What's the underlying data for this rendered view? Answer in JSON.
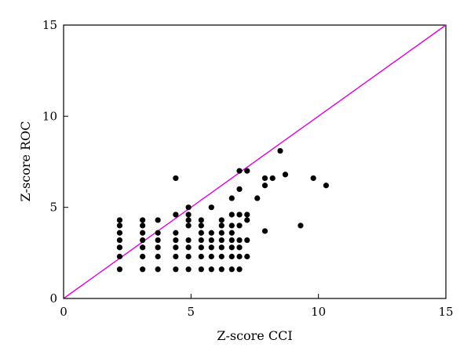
{
  "chart_data": {
    "type": "scatter",
    "xlabel": "Z-score CCI",
    "ylabel": "Z-score ROC",
    "xlim": [
      0,
      15
    ],
    "ylim": [
      0,
      15
    ],
    "xticks": [
      0,
      5,
      10,
      15
    ],
    "yticks": [
      0,
      5,
      10,
      15
    ],
    "grid": false,
    "legend": "none",
    "point_color": "#000000",
    "line_color": "#e000e0",
    "reference_line": {
      "type": "identity",
      "from": [
        0,
        0
      ],
      "to": [
        15,
        15
      ]
    },
    "series": [
      {
        "points": [
          [
            2.2,
            1.6
          ],
          [
            2.2,
            2.3
          ],
          [
            2.2,
            2.8
          ],
          [
            2.2,
            3.2
          ],
          [
            2.2,
            3.6
          ],
          [
            2.2,
            4.0
          ],
          [
            2.2,
            4.3
          ],
          [
            3.1,
            1.6
          ],
          [
            3.1,
            2.3
          ],
          [
            3.1,
            2.8
          ],
          [
            3.1,
            3.2
          ],
          [
            3.1,
            3.6
          ],
          [
            3.1,
            4.0
          ],
          [
            3.1,
            4.3
          ],
          [
            3.7,
            1.6
          ],
          [
            3.7,
            2.3
          ],
          [
            3.7,
            2.8
          ],
          [
            3.7,
            3.2
          ],
          [
            3.7,
            3.6
          ],
          [
            3.7,
            4.3
          ],
          [
            4.4,
            1.6
          ],
          [
            4.4,
            2.3
          ],
          [
            4.4,
            2.8
          ],
          [
            4.4,
            3.2
          ],
          [
            4.4,
            3.6
          ],
          [
            4.4,
            4.6
          ],
          [
            4.4,
            6.6
          ],
          [
            4.9,
            1.6
          ],
          [
            4.9,
            2.3
          ],
          [
            4.9,
            2.8
          ],
          [
            4.9,
            3.2
          ],
          [
            4.9,
            4.0
          ],
          [
            4.9,
            4.3
          ],
          [
            4.9,
            4.6
          ],
          [
            4.9,
            5.0
          ],
          [
            5.4,
            1.6
          ],
          [
            5.4,
            2.3
          ],
          [
            5.4,
            2.8
          ],
          [
            5.4,
            3.2
          ],
          [
            5.4,
            3.6
          ],
          [
            5.4,
            4.0
          ],
          [
            5.4,
            4.3
          ],
          [
            5.8,
            1.6
          ],
          [
            5.8,
            2.3
          ],
          [
            5.8,
            2.8
          ],
          [
            5.8,
            3.2
          ],
          [
            5.8,
            3.6
          ],
          [
            5.8,
            5.0
          ],
          [
            6.2,
            1.6
          ],
          [
            6.2,
            2.3
          ],
          [
            6.2,
            2.8
          ],
          [
            6.2,
            3.2
          ],
          [
            6.2,
            3.6
          ],
          [
            6.2,
            4.0
          ],
          [
            6.2,
            4.3
          ],
          [
            6.6,
            1.6
          ],
          [
            6.6,
            2.3
          ],
          [
            6.6,
            2.8
          ],
          [
            6.6,
            3.2
          ],
          [
            6.6,
            3.6
          ],
          [
            6.6,
            4.0
          ],
          [
            6.6,
            4.6
          ],
          [
            6.6,
            5.5
          ],
          [
            6.9,
            1.6
          ],
          [
            6.9,
            2.3
          ],
          [
            6.9,
            2.8
          ],
          [
            6.9,
            3.2
          ],
          [
            6.9,
            4.0
          ],
          [
            6.9,
            4.6
          ],
          [
            6.9,
            6.0
          ],
          [
            6.9,
            7.0
          ],
          [
            7.2,
            2.3
          ],
          [
            7.2,
            3.2
          ],
          [
            7.2,
            4.3
          ],
          [
            7.2,
            4.6
          ],
          [
            7.2,
            7.0
          ],
          [
            7.6,
            5.5
          ],
          [
            7.9,
            3.7
          ],
          [
            7.9,
            6.2
          ],
          [
            7.9,
            6.6
          ],
          [
            8.2,
            6.6
          ],
          [
            8.5,
            8.1
          ],
          [
            8.7,
            6.8
          ],
          [
            9.3,
            4.0
          ],
          [
            9.8,
            6.6
          ],
          [
            10.3,
            6.2
          ]
        ]
      }
    ]
  }
}
